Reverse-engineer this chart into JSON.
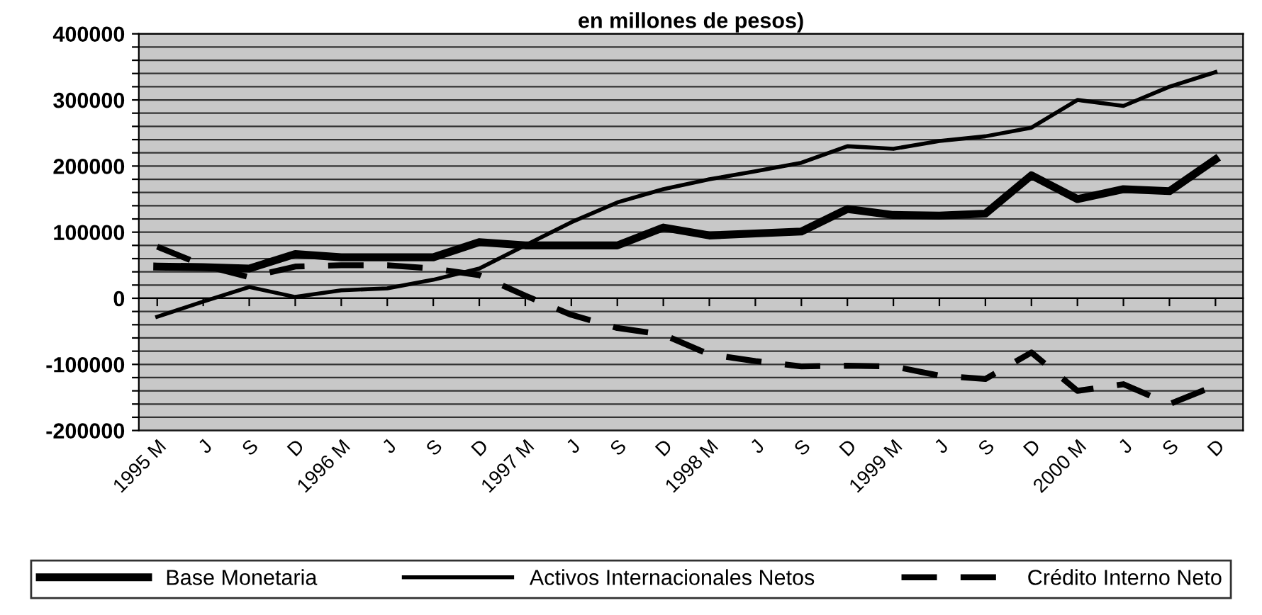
{
  "chart_data": {
    "type": "line",
    "title": "en millones de pesos)",
    "categories": [
      "1995 M",
      "J",
      "S",
      "D",
      "1996 M",
      "J",
      "S",
      "D",
      "1997 M",
      "J",
      "S",
      "D",
      "1998 M",
      "J",
      "S",
      "D",
      "1999 M",
      "J",
      "S",
      "D",
      "2000 M",
      "J",
      "S",
      "D"
    ],
    "series": [
      {
        "name": "Base Monetaria",
        "color": "#000000",
        "line_style": "solid",
        "values": [
          48000,
          47000,
          45000,
          67000,
          62000,
          62000,
          62000,
          85000,
          80000,
          80000,
          80000,
          107000,
          95000,
          98000,
          101000,
          135000,
          126000,
          125000,
          128000,
          186000,
          150000,
          165000,
          162000,
          210000
        ]
      },
      {
        "name": "Activos Internacionales Netos",
        "color": "#000000",
        "line_style": "solid",
        "values": [
          -28000,
          -5000,
          17000,
          2000,
          12000,
          15000,
          28000,
          45000,
          80000,
          115000,
          145000,
          165000,
          180000,
          192000,
          205000,
          230000,
          226000,
          238000,
          245000,
          258000,
          300000,
          291000,
          320000,
          342000
        ]
      },
      {
        "name": "Crédito Interno Neto",
        "color": "#000000",
        "line_style": "dashed",
        "values": [
          78000,
          50000,
          32000,
          48000,
          50000,
          50000,
          45000,
          35000,
          4000,
          -25000,
          -45000,
          -55000,
          -85000,
          -95000,
          -103000,
          -102000,
          -103000,
          -117000,
          -122000,
          -82000,
          -140000,
          -130000,
          -160000,
          -132000
        ]
      }
    ],
    "ylim": [
      -200000,
      400000
    ],
    "yticks": [
      -200000,
      {
        "value": -180000,
        "label": null
      },
      {
        "value": -160000,
        "label": null
      },
      {
        "value": -140000,
        "label": null
      },
      {
        "value": -120000,
        "label": null
      },
      -100000,
      {
        "value": -80000,
        "label": null
      },
      {
        "value": -60000,
        "label": null
      },
      {
        "value": -40000,
        "label": null
      },
      {
        "value": -20000,
        "label": null
      },
      0,
      {
        "value": 20000,
        "label": null
      },
      {
        "value": 40000,
        "label": null
      },
      {
        "value": 60000,
        "label": null
      },
      {
        "value": 80000,
        "label": null
      },
      100000,
      {
        "value": 120000,
        "label": null
      },
      {
        "value": 140000,
        "label": null
      },
      {
        "value": 160000,
        "label": null
      },
      {
        "value": 180000,
        "label": null
      },
      200000,
      {
        "value": 220000,
        "label": null
      },
      {
        "value": 240000,
        "label": null
      },
      {
        "value": 260000,
        "label": null
      },
      {
        "value": 280000,
        "label": null
      },
      300000,
      {
        "value": 320000,
        "label": null
      },
      {
        "value": 340000,
        "label": null
      },
      {
        "value": 360000,
        "label": null
      },
      {
        "value": 380000,
        "label": null
      },
      400000
    ],
    "grid": "y",
    "legend": "bottom",
    "marker": "none"
  }
}
